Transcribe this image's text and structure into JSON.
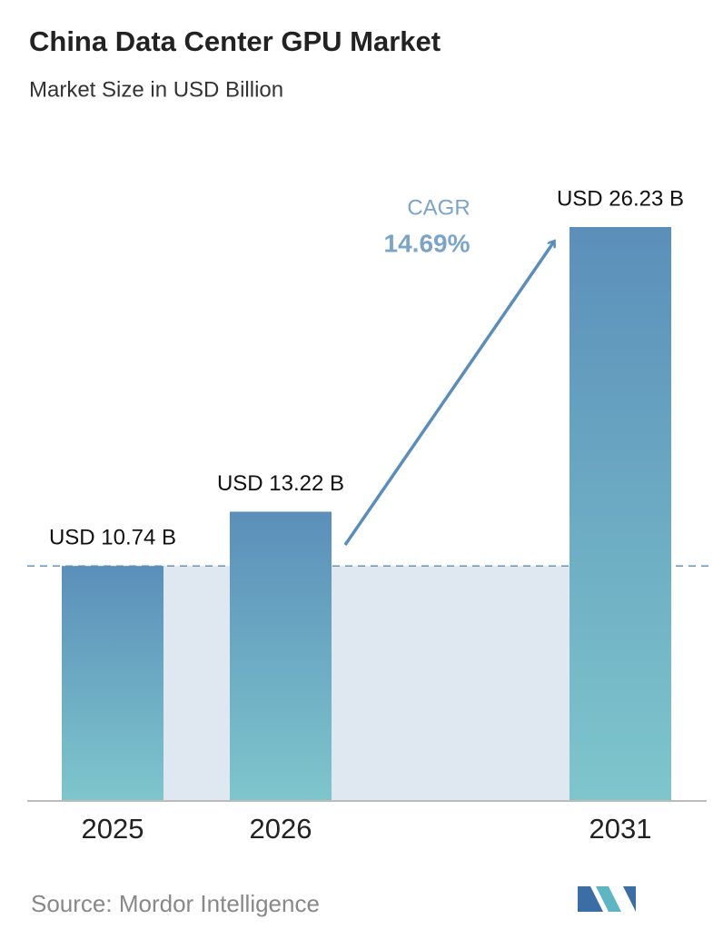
{
  "chart_data": {
    "type": "bar",
    "title": "China Data Center GPU Market",
    "subtitle": "Market Size in USD Billion",
    "categories": [
      "2025",
      "2026",
      "2031"
    ],
    "values": [
      10.74,
      13.22,
      26.23
    ],
    "value_labels": [
      "USD 10.74 B",
      "USD 13.22 B",
      "USD 26.23 B"
    ],
    "cagr": {
      "label": "CAGR",
      "value": "14.69%"
    },
    "source": "Source: Mordor Intelligence"
  }
}
